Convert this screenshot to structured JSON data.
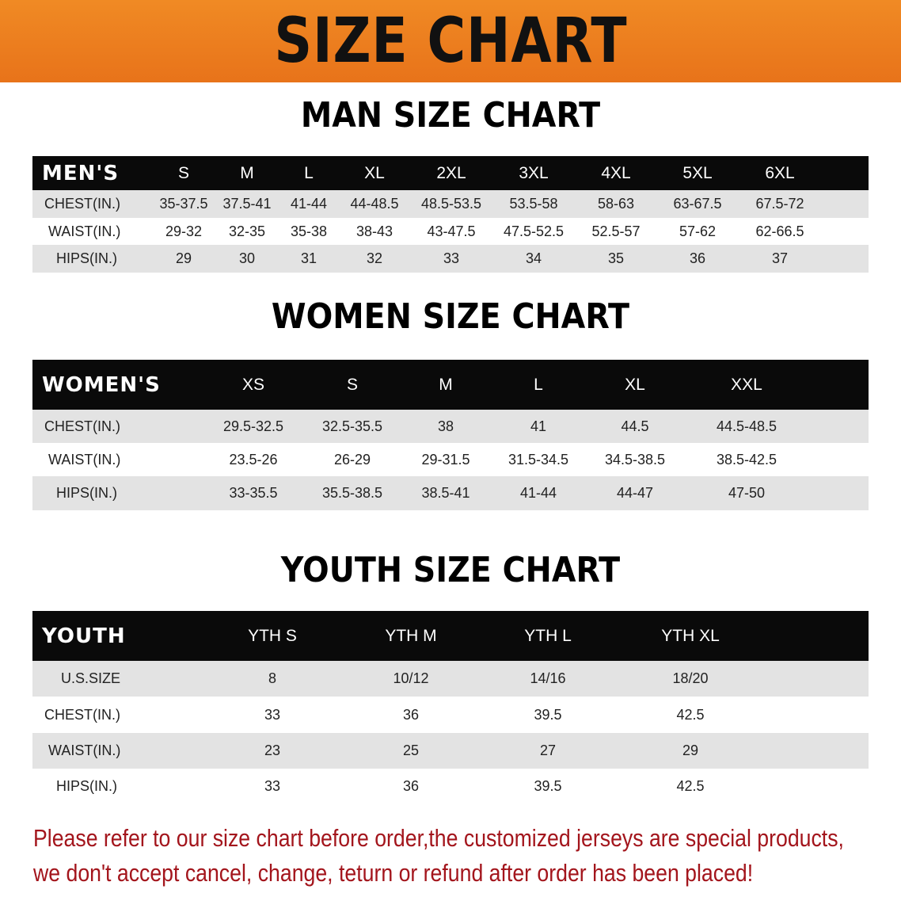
{
  "banner": {
    "title": "SIZE CHART",
    "color": "#e8731a"
  },
  "tables": [
    {
      "title": "MAN SIZE CHART",
      "corner": "MEN'S",
      "sizes": [
        "S",
        "M",
        "L",
        "XL",
        "2XL",
        "3XL",
        "4XL",
        "5XL",
        "6XL"
      ],
      "rows": [
        {
          "label": "CHEST(IN.)",
          "values": [
            "35-37.5",
            "37.5-41",
            "41-44",
            "44-48.5",
            "48.5-53.5",
            "53.5-58",
            "58-63",
            "63-67.5",
            "67.5-72"
          ]
        },
        {
          "label": "WAIST(IN.)",
          "values": [
            "29-32",
            "32-35",
            "35-38",
            "38-43",
            "43-47.5",
            "47.5-52.5",
            "52.5-57",
            "57-62",
            "62-66.5"
          ]
        },
        {
          "label": "HIPS(IN.)",
          "values": [
            "29",
            "30",
            "31",
            "32",
            "33",
            "34",
            "35",
            "36",
            "37"
          ]
        }
      ]
    },
    {
      "title": "WOMEN SIZE CHART",
      "corner": "WOMEN'S",
      "sizes": [
        "XS",
        "S",
        "M",
        "L",
        "XL",
        "XXL"
      ],
      "rows": [
        {
          "label": "CHEST(IN.)",
          "values": [
            "29.5-32.5",
            "32.5-35.5",
            "38",
            "41",
            "44.5",
            "44.5-48.5"
          ]
        },
        {
          "label": "WAIST(IN.)",
          "values": [
            "23.5-26",
            "26-29",
            "29-31.5",
            "31.5-34.5",
            "34.5-38.5",
            "38.5-42.5"
          ]
        },
        {
          "label": "HIPS(IN.)",
          "values": [
            "33-35.5",
            "35.5-38.5",
            "38.5-41",
            "41-44",
            "44-47",
            "47-50"
          ]
        }
      ]
    },
    {
      "title": "YOUTH SIZE CHART",
      "corner": "YOUTH",
      "sizes": [
        "YTH S",
        "YTH M",
        "YTH L",
        "YTH XL"
      ],
      "rows": [
        {
          "label": "U.S.SIZE",
          "values": [
            "8",
            "10/12",
            "14/16",
            "18/20"
          ]
        },
        {
          "label": "CHEST(IN.)",
          "values": [
            "33",
            "36",
            "39.5",
            "42.5"
          ]
        },
        {
          "label": "WAIST(IN.)",
          "values": [
            "23",
            "25",
            "27",
            "29"
          ]
        },
        {
          "label": "HIPS(IN.)",
          "values": [
            "33",
            "36",
            "39.5",
            "42.5"
          ]
        }
      ]
    }
  ],
  "note": {
    "line1": "Please refer to our size chart before order,the customized jerseys are special products,",
    "line2": "we don't accept cancel, change, teturn or refund after order has been placed!",
    "color": "#a3151c"
  }
}
